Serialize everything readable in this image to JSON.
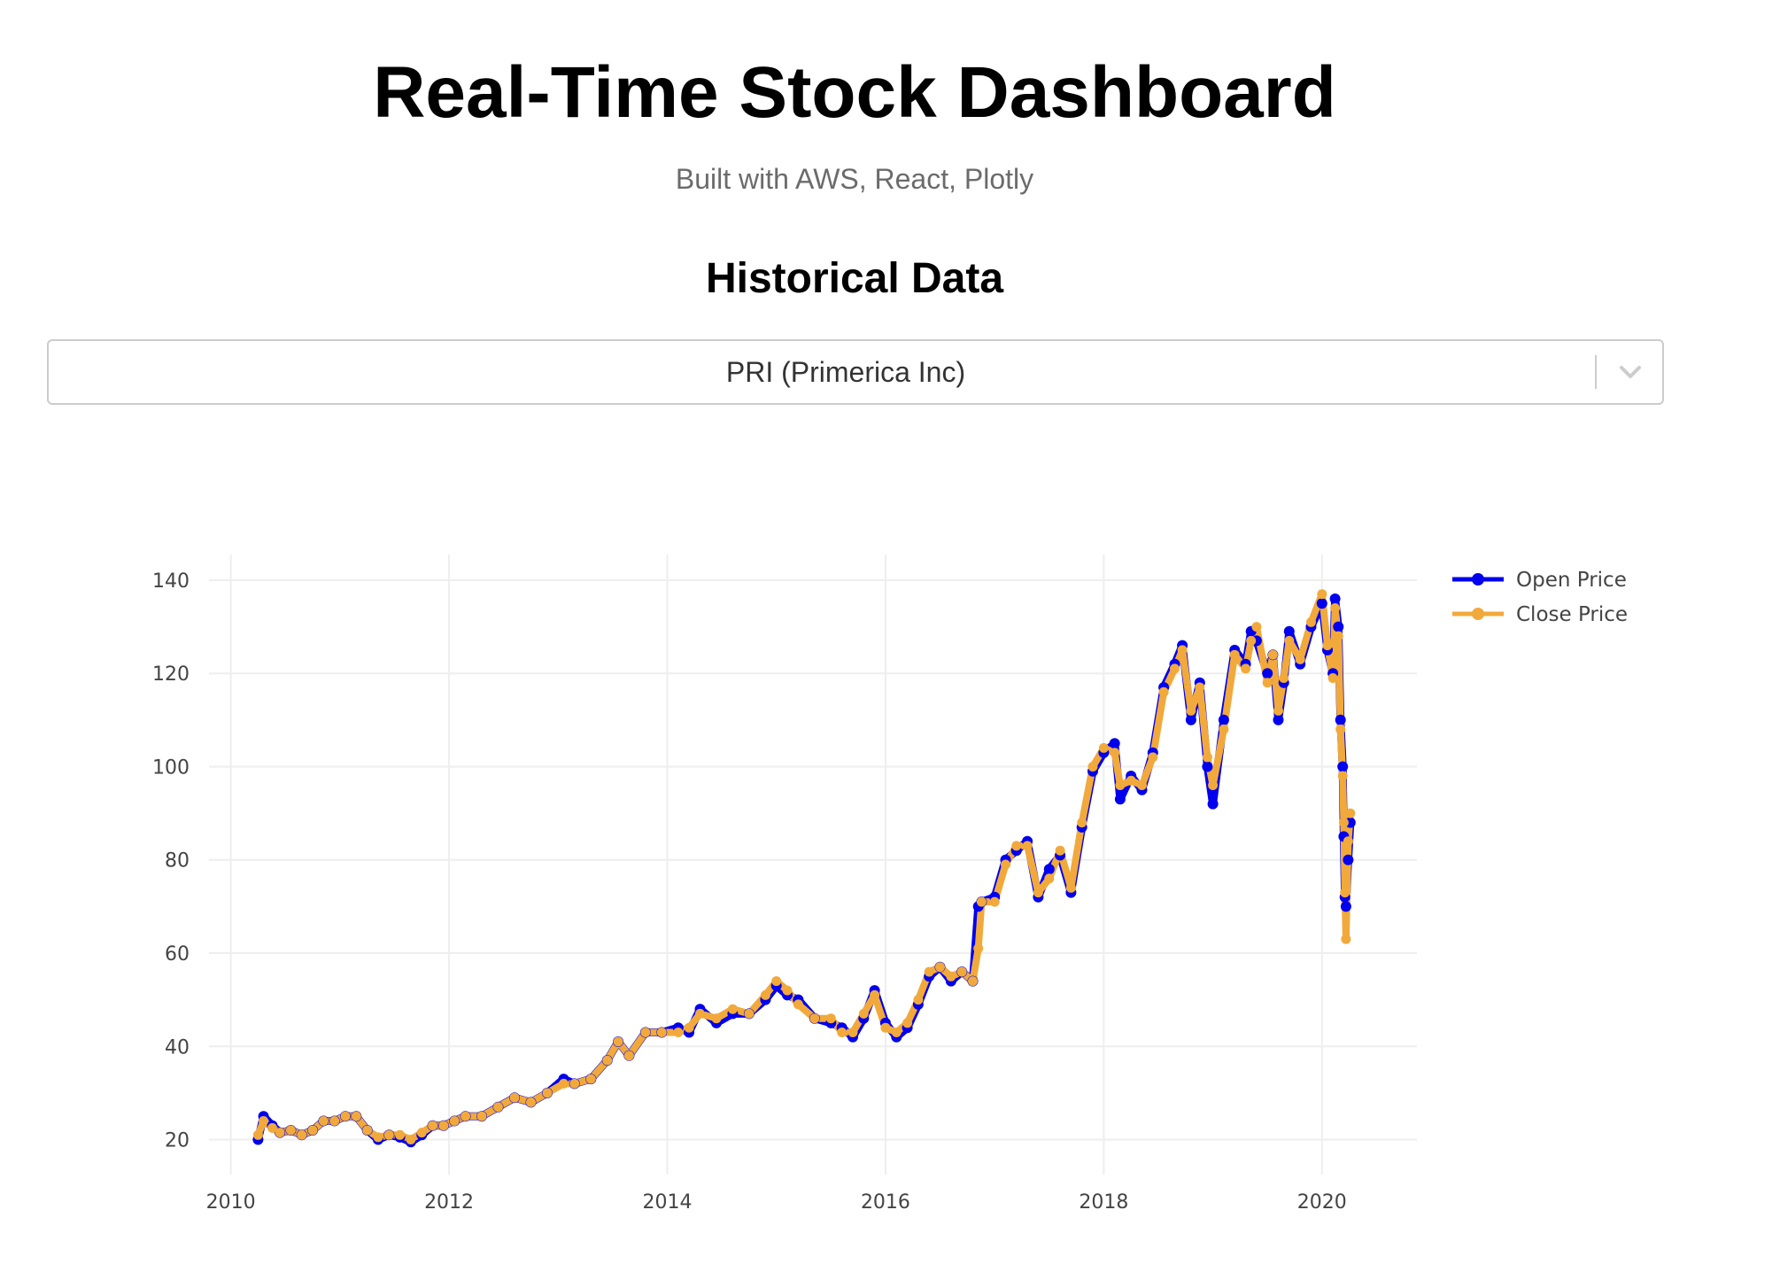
{
  "header": {
    "title": "Real-Time Stock Dashboard",
    "subtitle": "Built with AWS, React, Plotly"
  },
  "section": {
    "title": "Historical Data"
  },
  "ticker_select": {
    "value": "PRI (Primerica Inc)",
    "icon": "chevron-down-icon"
  },
  "chart_data": {
    "type": "line",
    "title": "",
    "xlabel": "",
    "ylabel": "",
    "xlim": [
      2009.8,
      2020.87
    ],
    "ylim": [
      12.5,
      145.5
    ],
    "x_ticks": [
      "2010",
      "2012",
      "2014",
      "2016",
      "2018",
      "2020"
    ],
    "y_ticks": [
      20,
      40,
      60,
      80,
      100,
      120,
      140
    ],
    "grid": true,
    "legend_position": "top-right",
    "x": [
      2010.25,
      2010.3,
      2010.38,
      2010.45,
      2010.55,
      2010.65,
      2010.75,
      2010.85,
      2010.95,
      2011.05,
      2011.15,
      2011.25,
      2011.35,
      2011.45,
      2011.55,
      2011.65,
      2011.75,
      2011.85,
      2011.95,
      2012.05,
      2012.15,
      2012.3,
      2012.45,
      2012.6,
      2012.75,
      2012.9,
      2013.05,
      2013.15,
      2013.3,
      2013.45,
      2013.55,
      2013.65,
      2013.8,
      2013.95,
      2014.1,
      2014.2,
      2014.3,
      2014.45,
      2014.6,
      2014.75,
      2014.9,
      2015.0,
      2015.1,
      2015.2,
      2015.35,
      2015.5,
      2015.6,
      2015.7,
      2015.8,
      2015.9,
      2016.0,
      2016.1,
      2016.2,
      2016.3,
      2016.4,
      2016.5,
      2016.6,
      2016.7,
      2016.8,
      2016.85,
      2016.88,
      2017.0,
      2017.1,
      2017.2,
      2017.3,
      2017.4,
      2017.5,
      2017.6,
      2017.7,
      2017.8,
      2017.9,
      2018.0,
      2018.1,
      2018.15,
      2018.25,
      2018.35,
      2018.45,
      2018.55,
      2018.65,
      2018.72,
      2018.8,
      2018.88,
      2018.95,
      2019.0,
      2019.1,
      2019.2,
      2019.3,
      2019.35,
      2019.4,
      2019.5,
      2019.55,
      2019.6,
      2019.65,
      2019.7,
      2019.8,
      2019.9,
      2020.0,
      2020.05,
      2020.1,
      2020.12,
      2020.15,
      2020.17,
      2020.19,
      2020.2,
      2020.21,
      2020.22,
      2020.24,
      2020.26
    ],
    "series": [
      {
        "name": "Open Price",
        "color": "#0000ee",
        "values": [
          20,
          25,
          23,
          21.5,
          22,
          21,
          22,
          24,
          24,
          25,
          25,
          22,
          20,
          21,
          20.5,
          19.5,
          21,
          23,
          23,
          24,
          25,
          25,
          27,
          29,
          28,
          30,
          33,
          32,
          33,
          37,
          41,
          38,
          43,
          43,
          44,
          43,
          48,
          45,
          47,
          47,
          50,
          53,
          51,
          50,
          46,
          45,
          44,
          42,
          46,
          52,
          45,
          42,
          44,
          49,
          55,
          57,
          54,
          56,
          54,
          70,
          71,
          72,
          80,
          82,
          84,
          72,
          78,
          81,
          73,
          87,
          99,
          103,
          105,
          93,
          98,
          95,
          103,
          117,
          122,
          126,
          110,
          118,
          100,
          92,
          110,
          125,
          122,
          129,
          127,
          120,
          124,
          110,
          118,
          129,
          122,
          130,
          135,
          125,
          120,
          136,
          130,
          110,
          100,
          85,
          72,
          70,
          80,
          88
        ]
      },
      {
        "name": "Close Price",
        "color": "#f2a93b",
        "values": [
          21,
          24,
          22.5,
          21.5,
          22,
          21,
          22,
          24,
          24,
          25,
          25,
          22,
          20.5,
          21,
          21,
          20,
          21.5,
          23,
          23,
          24,
          25,
          25,
          27,
          29,
          28,
          30,
          32,
          32,
          33,
          37,
          41,
          38,
          43,
          43,
          43,
          44,
          47,
          46,
          48,
          47,
          51,
          54,
          52,
          49,
          46,
          46,
          43,
          43,
          47,
          51,
          44,
          43,
          45,
          50,
          56,
          57,
          55,
          56,
          54,
          61,
          71,
          71,
          79,
          83,
          83,
          73,
          76,
          82,
          74,
          88,
          100,
          104,
          103,
          96,
          97,
          96,
          102,
          116,
          121,
          125,
          112,
          117,
          102,
          96,
          108,
          124,
          121,
          127,
          130,
          118,
          124,
          112,
          119,
          127,
          123,
          131,
          137,
          126,
          119,
          134,
          128,
          108,
          98,
          88,
          73,
          63,
          84,
          90
        ]
      }
    ]
  }
}
